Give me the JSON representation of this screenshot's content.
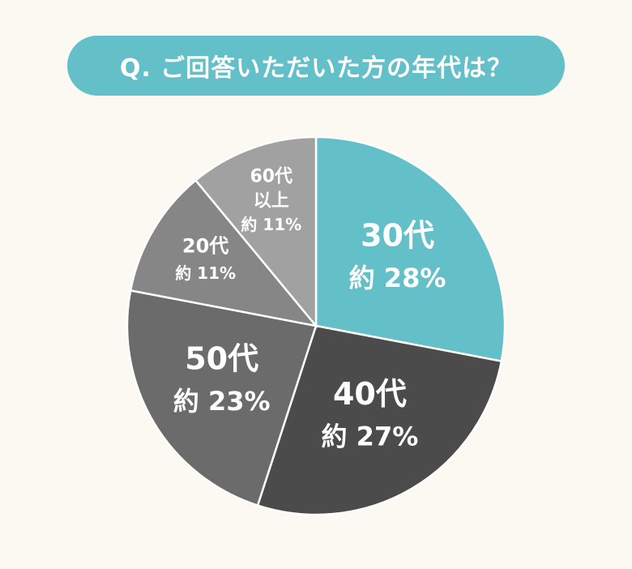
{
  "title": "Q. ご回答いただいた方の年代は？",
  "chart_data": {
    "type": "pie",
    "start_angle_deg": 0,
    "direction": "clockwise",
    "slices": [
      {
        "name": "30代",
        "value": 28,
        "label_lines": [
          "30代",
          "約 28%"
        ],
        "color": "#63bfc8"
      },
      {
        "name": "40代",
        "value": 27,
        "label_lines": [
          "40代",
          "約 27%"
        ],
        "color": "#4b4b4b"
      },
      {
        "name": "50代",
        "value": 23,
        "label_lines": [
          "50代",
          "約 23%"
        ],
        "color": "#6b6b6b"
      },
      {
        "name": "20代",
        "value": 11,
        "label_lines": [
          "20代",
          "約 11%"
        ],
        "color": "#868686"
      },
      {
        "name": "60代以上",
        "value": 11,
        "label_lines": [
          "60代",
          "以上",
          "約 11%"
        ],
        "color": "#a1a1a1"
      }
    ]
  }
}
